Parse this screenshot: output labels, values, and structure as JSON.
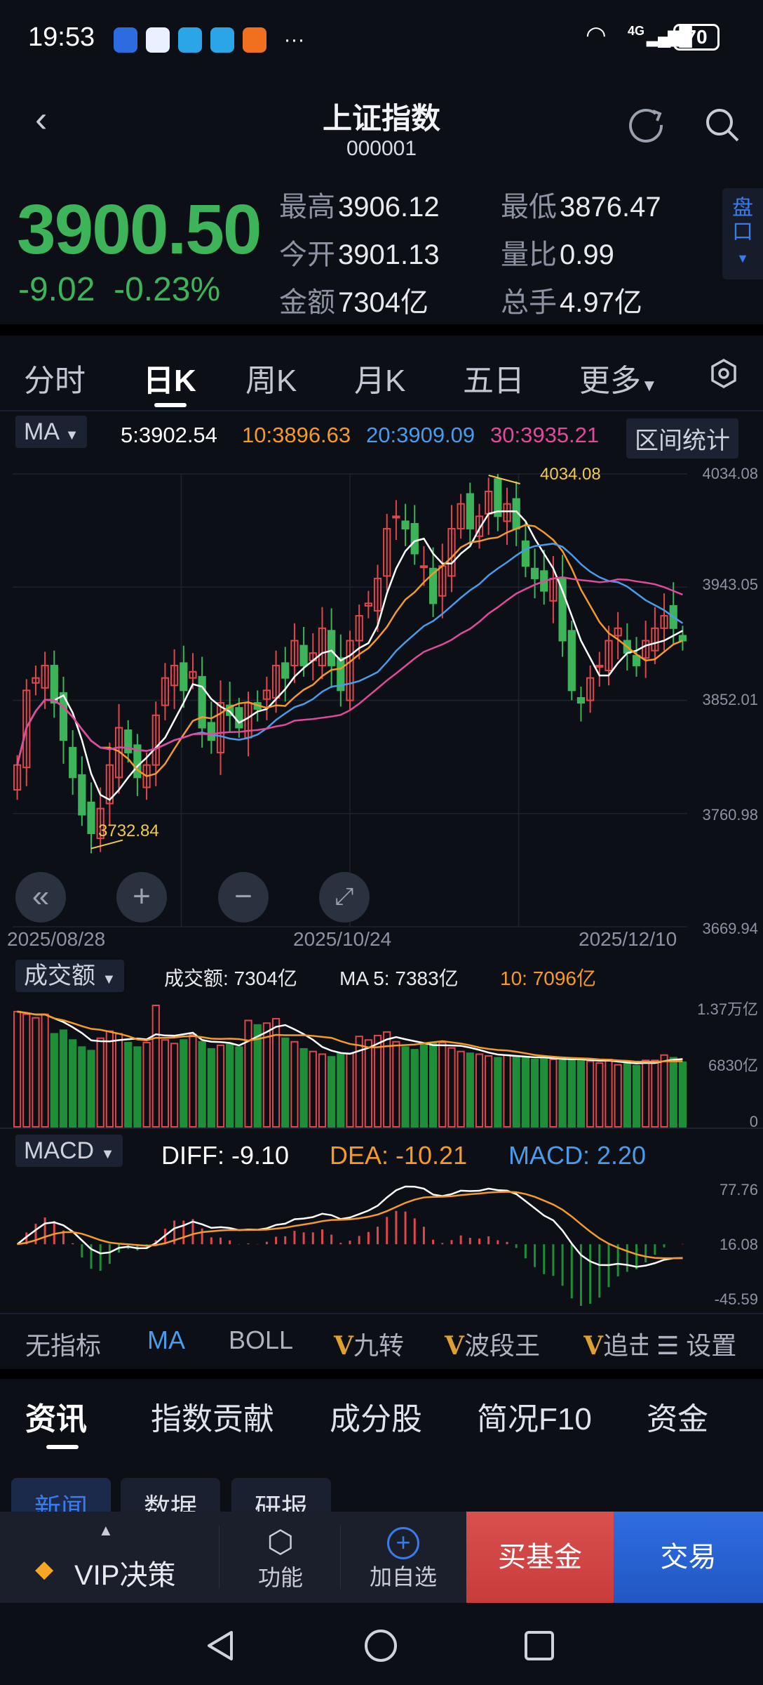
{
  "status": {
    "time": "19:53",
    "network": "4G",
    "battery": "70",
    "more": "···"
  },
  "header": {
    "title": "上证指数",
    "code": "000001"
  },
  "quote": {
    "price": "3900.50",
    "change": "-9.02",
    "change_pct": "-0.23%",
    "stats": [
      {
        "k": "最高",
        "v": "3906.12"
      },
      {
        "k": "最低",
        "v": "3876.47"
      },
      {
        "k": "今开",
        "v": "3901.13"
      },
      {
        "k": "量比",
        "v": "0.99"
      },
      {
        "k": "金额",
        "v": "7304亿"
      },
      {
        "k": "总手",
        "v": "4.97亿"
      }
    ],
    "pankou": "盘口",
    "up_color": "#e0474c",
    "down_color": "#3db45a"
  },
  "tabs": [
    "分时",
    "日K",
    "周K",
    "月K",
    "五日",
    "更多"
  ],
  "ma": {
    "label": "MA",
    "ma5": "5:3902.54",
    "ma10": "10:3896.63",
    "ma20": "20:3909.09",
    "ma30": "30:3935.21",
    "range_stats": "区间统计",
    "colors": {
      "ma5": "#ffffff",
      "ma10": "#f39a2b",
      "ma20": "#4a9bea",
      "ma30": "#e04a9a"
    }
  },
  "kline": {
    "y_ticks": [
      "4034.08",
      "3943.05",
      "3852.01",
      "3760.98",
      "3669.94"
    ],
    "ylim": [
      3669.94,
      4034.08
    ],
    "x_labels": [
      "2025/08/28",
      "2025/10/24",
      "2025/12/10"
    ],
    "max_label": "4034.08",
    "min_label": "3732.84",
    "closes": [
      3800,
      3860,
      3870,
      3880,
      3850,
      3820,
      3790,
      3760,
      3745,
      3765,
      3800,
      3830,
      3810,
      3790,
      3800,
      3840,
      3870,
      3880,
      3860,
      3875,
      3830,
      3820,
      3850,
      3840,
      3830,
      3850,
      3845,
      3860,
      3880,
      3870,
      3900,
      3880,
      3890,
      3910,
      3880,
      3860,
      3900,
      3920,
      3930,
      3950,
      3990,
      4000,
      3990,
      3970,
      3960,
      3930,
      3960,
      3990,
      4010,
      3990,
      4000,
      4020,
      4000,
      4010,
      3990,
      3960,
      3950,
      3940,
      3950,
      3900,
      3860,
      3850,
      3870,
      3880,
      3900,
      3910,
      3890,
      3880,
      3900,
      3910,
      3920,
      3910,
      3900
    ]
  },
  "volume": {
    "label": "成交额",
    "amount": "成交额: 7304亿",
    "ma5": "MA 5: 7383亿",
    "ma10": "10: 7096亿",
    "y_ticks": [
      "1.37万亿",
      "6830亿",
      "0"
    ],
    "ymax": 13700,
    "values": [
      13000,
      12700,
      12300,
      12700,
      10500,
      10900,
      9800,
      9000,
      8600,
      10000,
      10800,
      10500,
      9500,
      9000,
      9500,
      13700,
      9800,
      9400,
      9800,
      10400,
      9600,
      8800,
      9200,
      9300,
      9000,
      12000,
      11500,
      11700,
      12200,
      10000,
      9600,
      8800,
      8500,
      8200,
      7900,
      8300,
      8300,
      10200,
      9800,
      10300,
      10700,
      9600,
      9000,
      8700,
      9300,
      9500,
      9500,
      8900,
      8500,
      8300,
      8200,
      8000,
      7800,
      8100,
      7900,
      7800,
      7600,
      7800,
      7600,
      7500,
      7600,
      7600,
      7400,
      7200,
      7600,
      7000,
      7100,
      6900,
      7500,
      7500,
      8100,
      7800,
      7304
    ]
  },
  "macd": {
    "label": "MACD",
    "diff": "DIFF: -9.10",
    "dea": "DEA: -10.21",
    "macd": "MACD: 2.20",
    "y_ticks": [
      "77.76",
      "16.08",
      "-45.59"
    ]
  },
  "indicators": [
    "无指标",
    "MA",
    "BOLL",
    "九转",
    "波段王",
    "追击",
    "设置"
  ],
  "info_tabs": [
    "资讯",
    "指数贡献",
    "成分股",
    "简况F10",
    "资金"
  ],
  "sub_tabs": [
    "新闻",
    "数据",
    "研报"
  ],
  "bottom": {
    "vip": "VIP决策",
    "func": "功能",
    "add": "加自选",
    "buy_fund": "买基金",
    "trade": "交易"
  }
}
